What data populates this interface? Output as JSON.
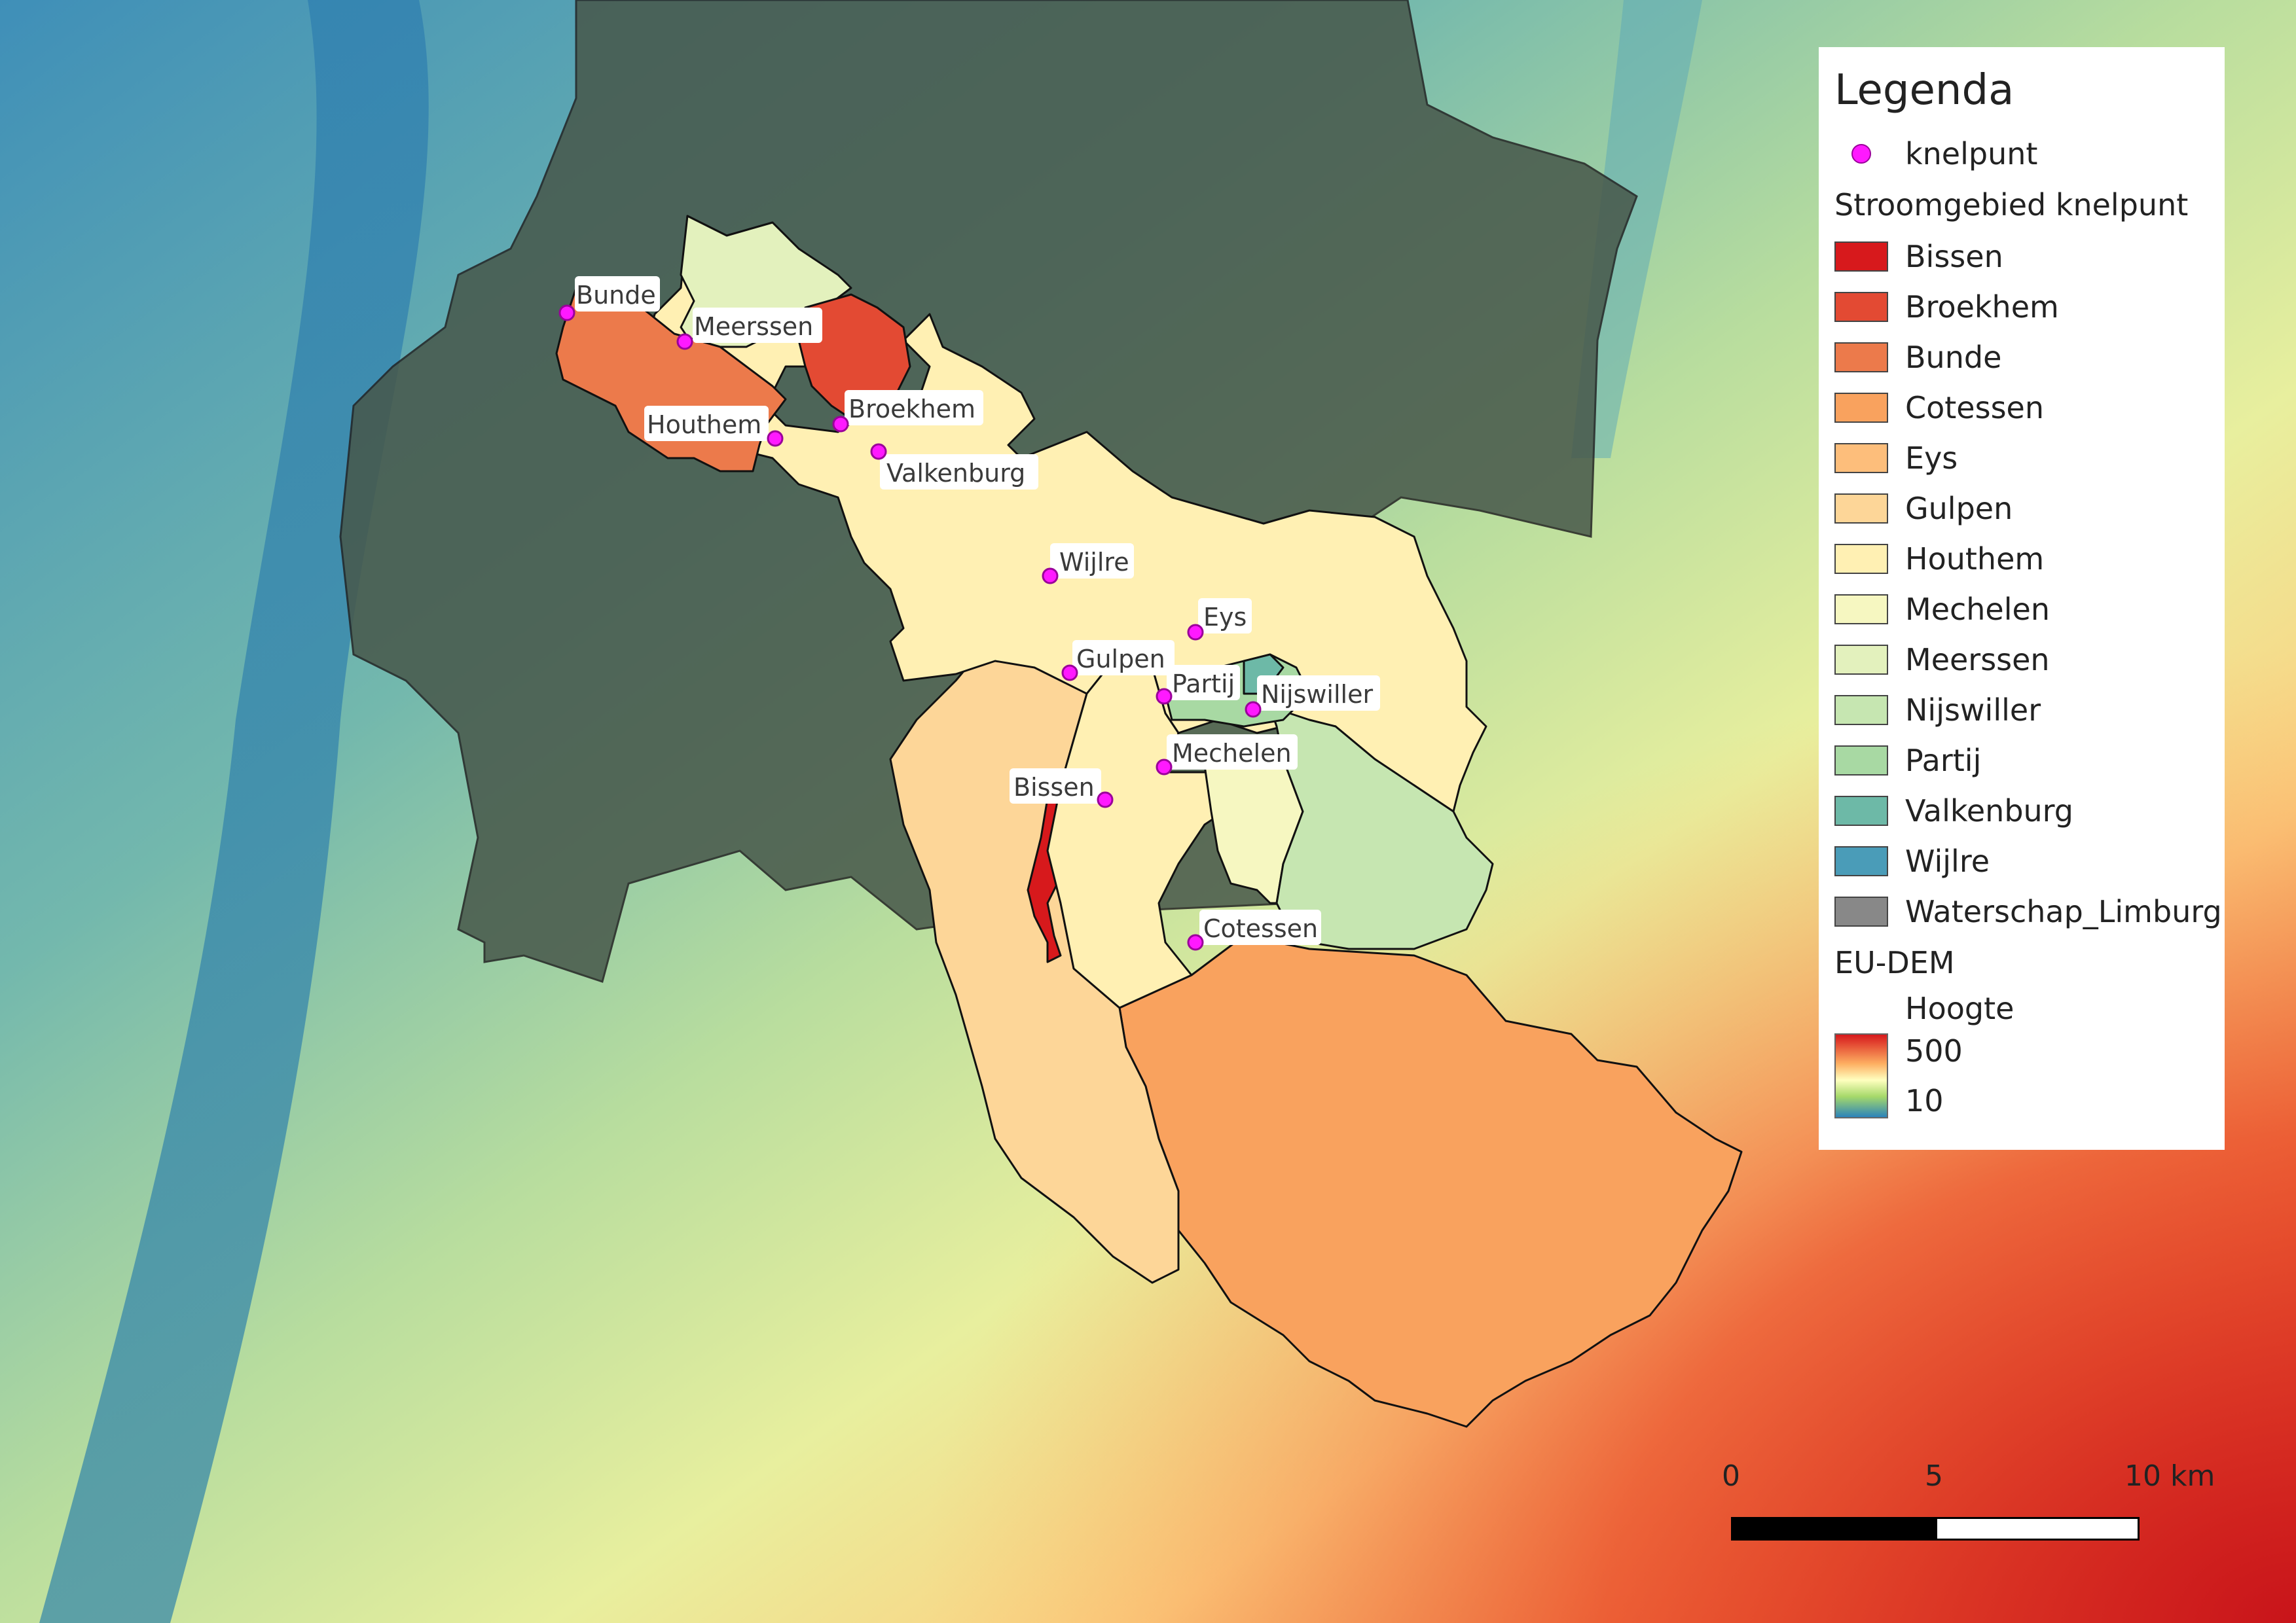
{
  "legend": {
    "title": "Legenda",
    "point_layer": "knelpunt",
    "catchment_group": "Stroomgebied knelpunt",
    "catchments": [
      {
        "name": "Bissen",
        "color": "#d7191c"
      },
      {
        "name": "Broekhem",
        "color": "#e34a33"
      },
      {
        "name": "Bunde",
        "color": "#ec7a4b"
      },
      {
        "name": "Cotessen",
        "color": "#f9a25e"
      },
      {
        "name": "Eys",
        "color": "#fdbe7b"
      },
      {
        "name": "Gulpen",
        "color": "#fdd698"
      },
      {
        "name": "Houthem",
        "color": "#fff0b3"
      },
      {
        "name": "Mechelen",
        "color": "#f6f7c1"
      },
      {
        "name": "Meerssen",
        "color": "#e3f1bd"
      },
      {
        "name": "Nijswiller",
        "color": "#c6e6b1"
      },
      {
        "name": "Partij",
        "color": "#a8d9a3"
      },
      {
        "name": "Valkenburg",
        "color": "#6db9a7"
      },
      {
        "name": "Wijlre",
        "color": "#4a9cb8"
      },
      {
        "name": "Waterschap_Limburg",
        "color": "#888888"
      }
    ],
    "dem_group": "EU-DEM",
    "dem_sub": "Hoogte",
    "dem_max": "500",
    "dem_min": "10"
  },
  "points": [
    {
      "label": "Bunde"
    },
    {
      "label": "Meerssen"
    },
    {
      "label": "Broekhem"
    },
    {
      "label": "Houthem"
    },
    {
      "label": "Valkenburg"
    },
    {
      "label": "Wijlre"
    },
    {
      "label": "Eys"
    },
    {
      "label": "Gulpen"
    },
    {
      "label": "Partij"
    },
    {
      "label": "Nijswiller"
    },
    {
      "label": "Mechelen"
    },
    {
      "label": "Bissen"
    },
    {
      "label": "Cotessen"
    }
  ],
  "scalebar": {
    "labels": [
      "0",
      "5",
      "10 km"
    ]
  }
}
